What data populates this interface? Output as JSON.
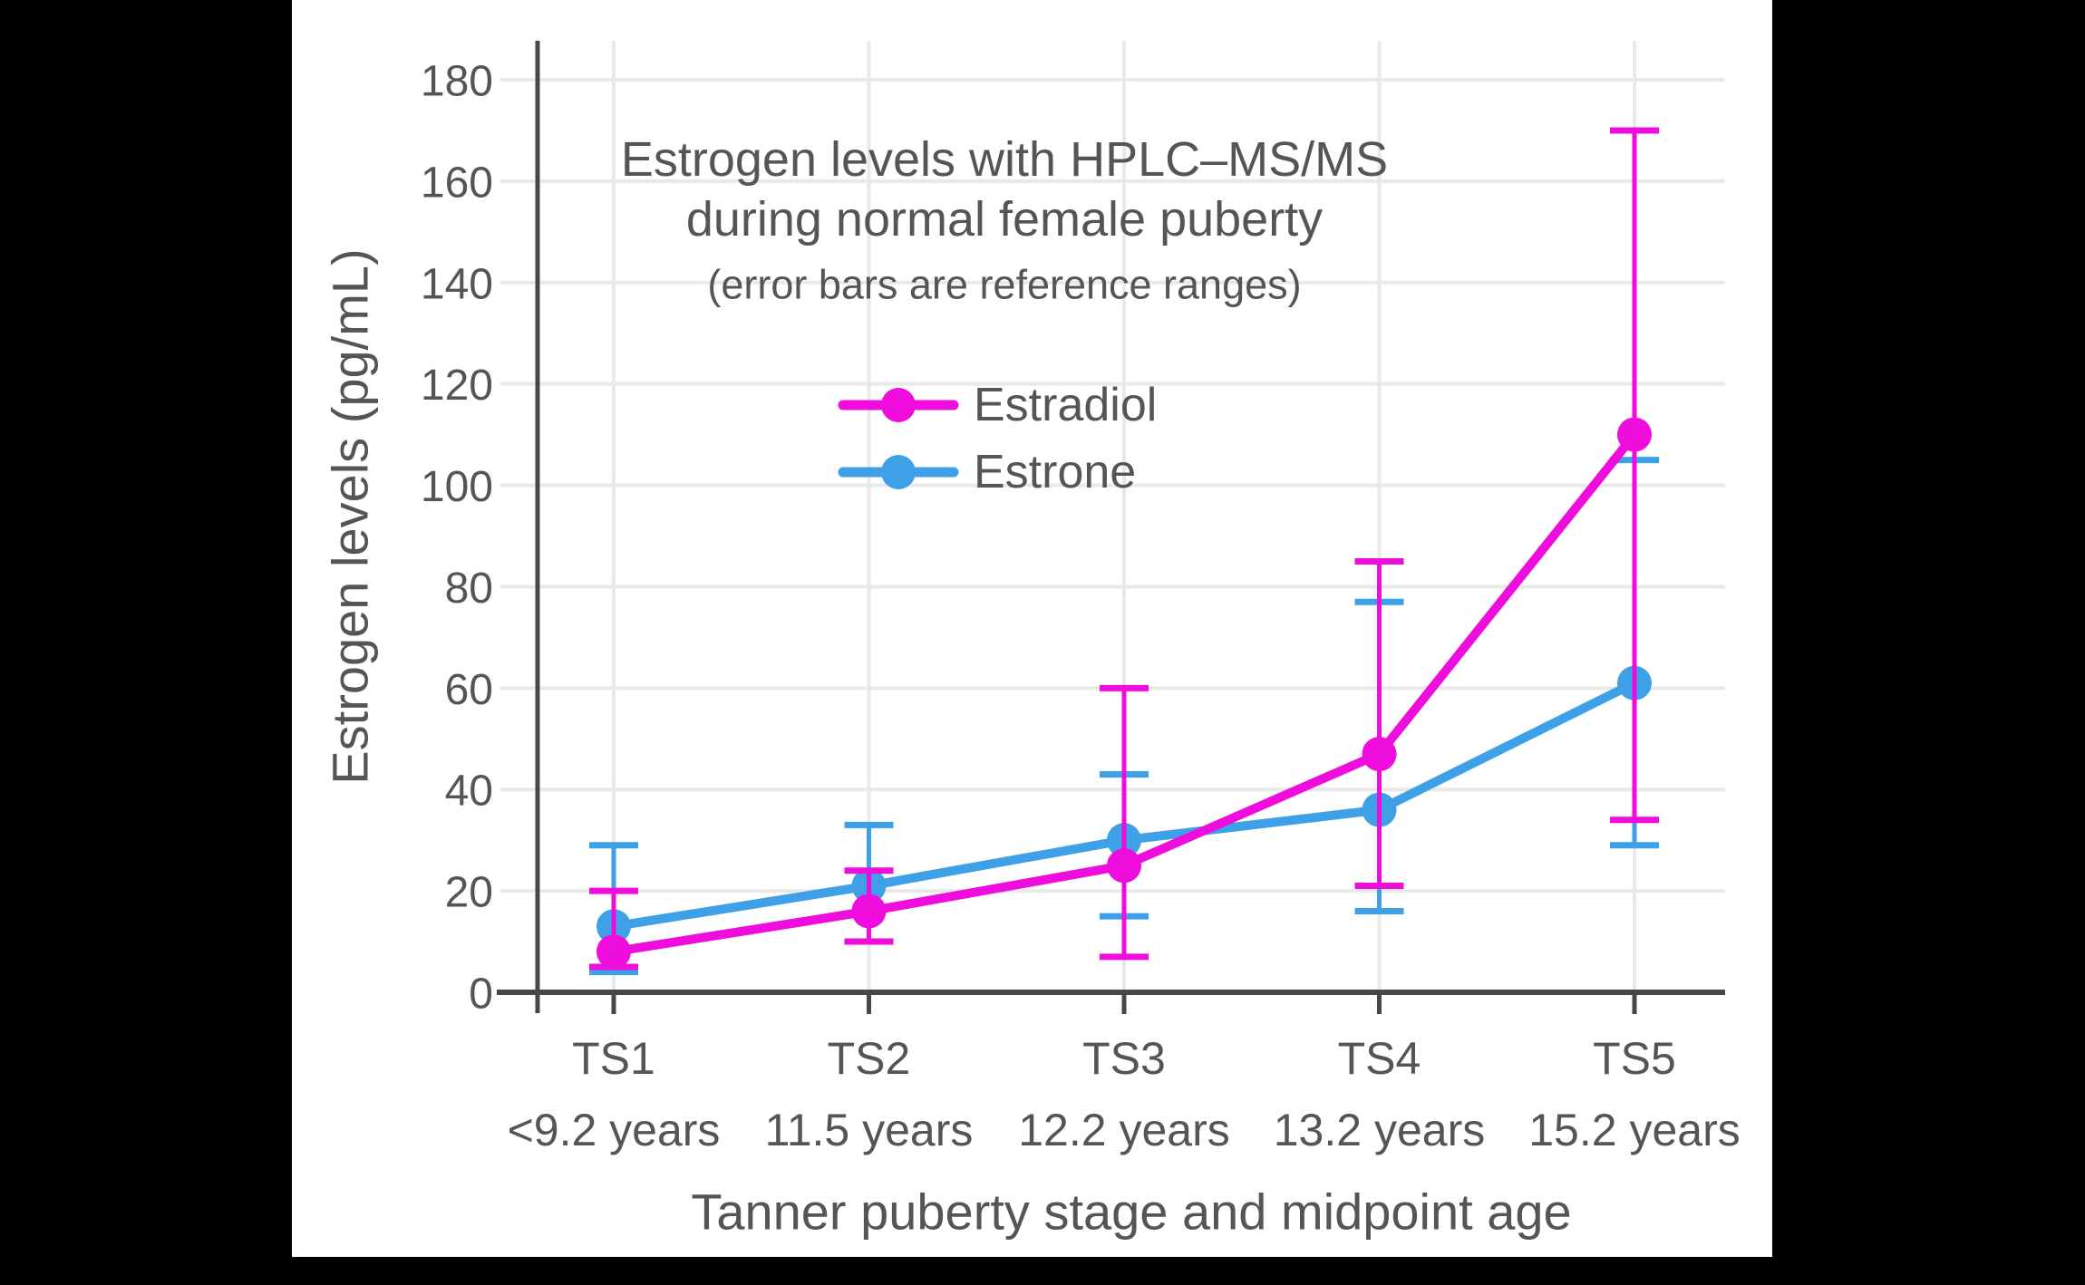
{
  "chart_data": {
    "type": "line",
    "title": "Estrogen levels with HPLC–MS/MS",
    "title_line2": "during normal female puberty",
    "subtitle": "(error bars are reference ranges)",
    "xlabel": "Tanner puberty stage and midpoint age",
    "ylabel": "Estrogen levels (pg/mL)",
    "categories": [
      "TS1",
      "TS2",
      "TS3",
      "TS4",
      "TS5"
    ],
    "category_sublabels": [
      "<9.2 years",
      "11.5 years",
      "12.2 years",
      "13.2 years",
      "15.2 years"
    ],
    "y_ticks": [
      0,
      20,
      40,
      60,
      80,
      100,
      120,
      140,
      160,
      180
    ],
    "ylim": [
      0,
      187
    ],
    "grid": true,
    "legend_position": "inside-upper-left",
    "series": [
      {
        "name": "Estradiol",
        "color": "#EE0DDD",
        "values": [
          8,
          16,
          25,
          47,
          110
        ],
        "error_low": [
          5,
          10,
          7,
          21,
          34
        ],
        "error_high": [
          20,
          24,
          60,
          85,
          170
        ]
      },
      {
        "name": "Estrone",
        "color": "#3EA1E8",
        "values": [
          13,
          21,
          30,
          36,
          61
        ],
        "error_low": [
          4,
          10,
          15,
          16,
          29
        ],
        "error_high": [
          29,
          33,
          43,
          77,
          105
        ]
      }
    ],
    "colors": {
      "background": "#000000",
      "plot_background": "#ffffff",
      "gridline": "#E9E9E9",
      "axis_line": "#474747",
      "text": "#555555"
    }
  }
}
